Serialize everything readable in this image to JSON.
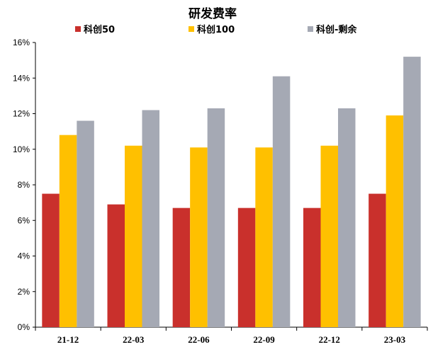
{
  "chart_data": {
    "type": "bar",
    "title": "研发费率",
    "categories": [
      "21-12",
      "22-03",
      "22-06",
      "22-09",
      "22-12",
      "23-03"
    ],
    "series": [
      {
        "name": "科创50",
        "color": "#C9302C",
        "values": [
          7.5,
          6.9,
          6.7,
          6.7,
          6.7,
          7.5
        ]
      },
      {
        "name": "科创100",
        "color": "#FFC000",
        "values": [
          10.8,
          10.2,
          10.1,
          10.1,
          10.2,
          11.9
        ]
      },
      {
        "name": "科创-剩余",
        "color": "#A5A9B4",
        "values": [
          11.6,
          12.2,
          12.3,
          14.1,
          12.3,
          15.2
        ]
      }
    ],
    "ylim": [
      0,
      16
    ],
    "yticks": [
      "0%",
      "2%",
      "4%",
      "6%",
      "8%",
      "10%",
      "12%",
      "14%",
      "16%"
    ],
    "legend_position": "top",
    "grid": false
  }
}
